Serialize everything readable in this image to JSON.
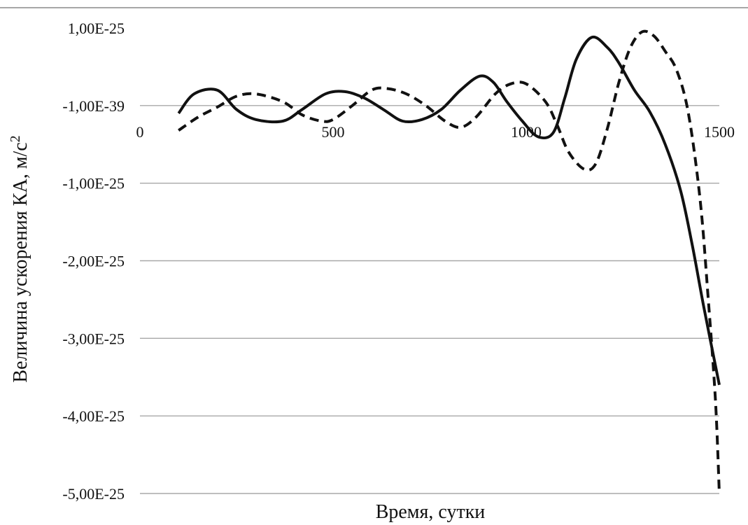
{
  "chart_data": {
    "type": "line",
    "title": "",
    "xlabel": "Время, сутки",
    "ylabel": "Величина ускорения КА, м/с",
    "ylabel_superscript": "2",
    "x_ticks": [
      "0",
      "500",
      "1000",
      "1500"
    ],
    "x_tick_values": [
      0,
      500,
      1000,
      1500
    ],
    "y_ticks": [
      "1,00E-25",
      "-1,00E-39",
      "-1,00E-25",
      "-2,00E-25",
      "-3,00E-25",
      "-4,00E-25",
      "-5,00E-25"
    ],
    "y_tick_values": [
      1e-25,
      0,
      -1e-25,
      -2e-25,
      -3e-25,
      -4e-25,
      -5e-25
    ],
    "xlim": [
      0,
      1500
    ],
    "ylim": [
      -5e-25,
      1e-25
    ],
    "grid": "horizontal",
    "legend": "none",
    "series": [
      {
        "style": "solid",
        "color": "#111111",
        "x": [
          100,
          140,
          200,
          250,
          300,
          370,
          420,
          480,
          530,
          580,
          630,
          680,
          730,
          780,
          830,
          880,
          915,
          950,
          990,
          1030,
          1070,
          1100,
          1130,
          1170,
          1210,
          1240,
          1280,
          1320,
          1360,
          1400,
          1430,
          1460,
          1500
        ],
        "y": [
          -1e-26,
          1.5e-26,
          2e-26,
          -5e-27,
          -1.8e-26,
          -2e-26,
          -5e-27,
          1.5e-26,
          1.8e-26,
          1e-26,
          -5e-27,
          -2e-26,
          -1.8e-26,
          -5e-27,
          2e-26,
          3.8e-26,
          3e-26,
          5e-27,
          -2e-26,
          -4e-26,
          -3.5e-26,
          1e-26,
          6e-26,
          8.8e-26,
          7.5e-26,
          5.5e-26,
          2e-26,
          -8e-27,
          -5e-26,
          -1.1e-25,
          -1.8e-25,
          -2.6e-25,
          -3.6e-25
        ]
      },
      {
        "style": "dashed",
        "color": "#111111",
        "x": [
          100,
          150,
          200,
          250,
          300,
          370,
          420,
          470,
          500,
          550,
          600,
          640,
          690,
          740,
          790,
          830,
          870,
          920,
          960,
          1000,
          1050,
          1080,
          1110,
          1150,
          1180,
          1210,
          1240,
          1270,
          1300,
          1330,
          1360,
          1390,
          1420,
          1450,
          1470,
          1490,
          1500
        ],
        "y": [
          -3.2e-26,
          -1.5e-26,
          -2e-27,
          1.2e-26,
          1.5e-26,
          5e-27,
          -1.2e-26,
          -2e-26,
          -1.8e-26,
          0.0,
          2e-26,
          2.2e-26,
          1.5e-26,
          0.0,
          -2e-26,
          -2.8e-26,
          -1.5e-26,
          1.5e-26,
          2.8e-26,
          2.8e-26,
          5e-27,
          -2.5e-26,
          -6e-26,
          -8.2e-26,
          -7.5e-26,
          -3e-26,
          3e-26,
          7.5e-26,
          9.5e-26,
          9e-26,
          7e-26,
          4.5e-26,
          -1e-26,
          -1.2e-25,
          -2.4e-25,
          -3.8e-25,
          -5e-25
        ]
      }
    ]
  }
}
